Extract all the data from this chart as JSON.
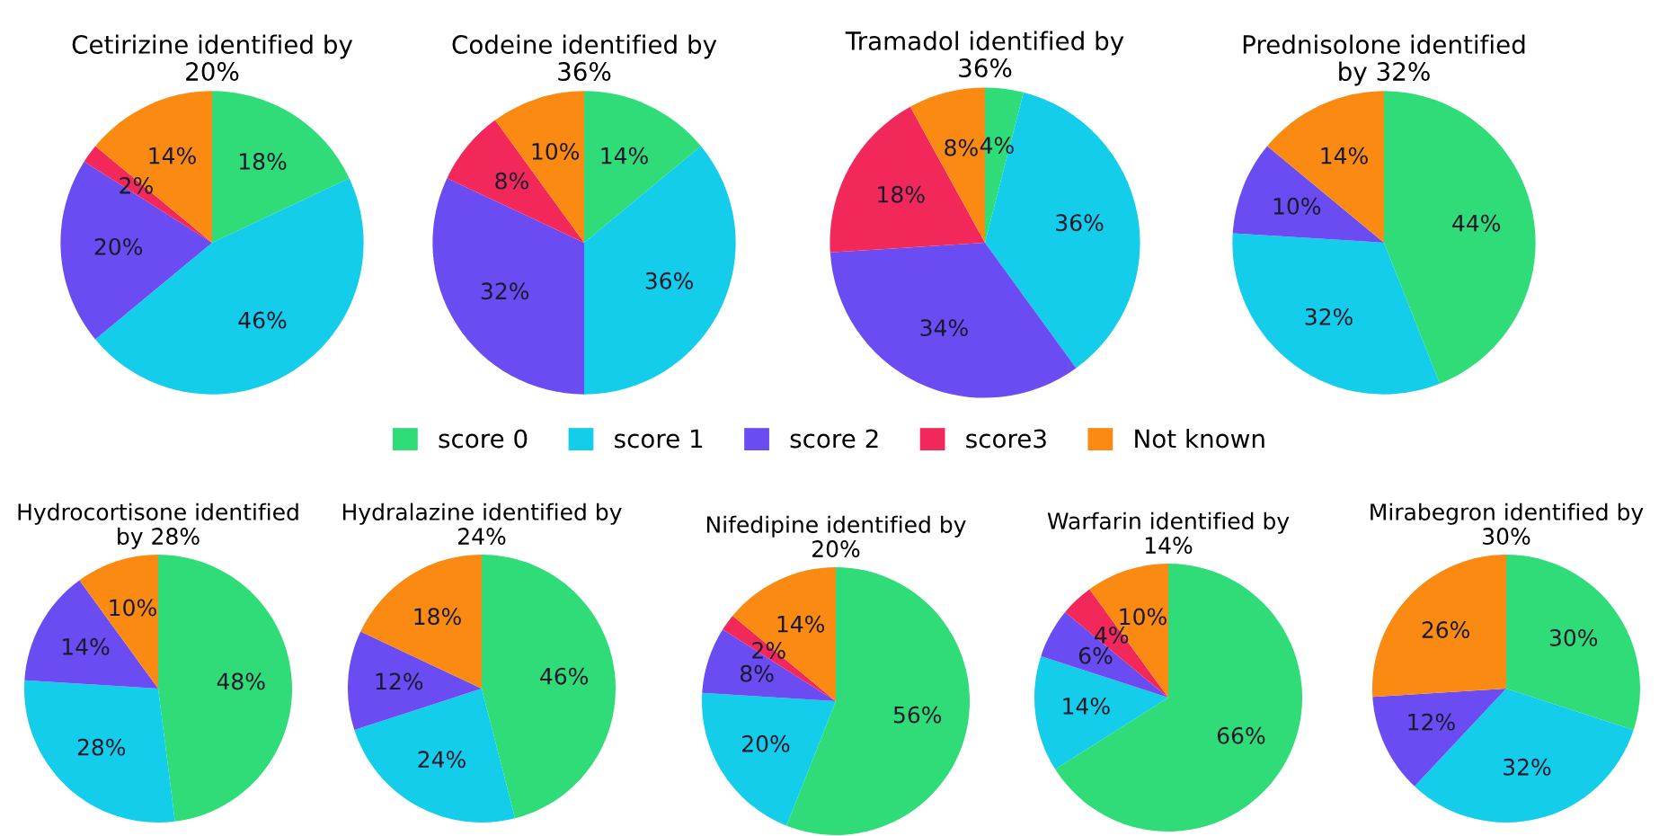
{
  "chart_data": [
    {
      "type": "pie",
      "title": "Cetirizine identified by 20%",
      "categories": [
        "score 0",
        "score 1",
        "score 2",
        "score3",
        "Not known"
      ],
      "values": [
        18,
        46,
        20,
        2,
        14
      ],
      "value_labels": [
        "18%",
        "46%",
        "20%",
        "2%",
        "14%"
      ],
      "colors": [
        "#2fdc78",
        "#14cdea",
        "#6a4cf2",
        "#f3285a",
        "#fb8a12"
      ],
      "legend": "bottom"
    },
    {
      "type": "pie",
      "title": "Codeine identified by 36%",
      "categories": [
        null,
        null,
        null,
        null,
        null
      ],
      "values": [
        14,
        36,
        32,
        8,
        10
      ],
      "value_labels": [
        "14%",
        "36%",
        "32%",
        "8%",
        "10%"
      ],
      "colors": [
        "#2fdc78",
        "#14cdea",
        "#6a4cf2",
        "#f3285a",
        "#fb8a12"
      ]
    },
    {
      "type": "pie",
      "title": "Tramadol identified by 36%",
      "categories": [
        null,
        null,
        null,
        null,
        null
      ],
      "values": [
        4,
        36,
        34,
        18,
        8
      ],
      "value_labels": [
        "4%",
        "36%",
        "34%",
        "18%",
        "8%"
      ],
      "colors": [
        "#2fdc78",
        "#14cdea",
        "#6a4cf2",
        "#f3285a",
        "#fb8a12"
      ]
    },
    {
      "type": "pie",
      "title": "Prednisolone identified by 32%",
      "categories": [
        null,
        null,
        null,
        null
      ],
      "values": [
        44,
        32,
        10,
        14
      ],
      "value_labels": [
        "44%",
        "32%",
        "10%",
        "14%"
      ],
      "colors": [
        "#2fdc78",
        "#14cdea",
        "#6a4cf2",
        "#fb8a12"
      ]
    },
    {
      "type": "pie",
      "title": "Hydrocortisone identified by 28%",
      "categories": [
        null,
        null,
        null,
        null
      ],
      "values": [
        48,
        28,
        14,
        10
      ],
      "value_labels": [
        "48%",
        "28%",
        "14%",
        "10%"
      ],
      "colors": [
        "#2fdc78",
        "#14cdea",
        "#6a4cf2",
        "#fb8a12"
      ]
    },
    {
      "type": "pie",
      "title": "Hydralazine identified by 24%",
      "categories": [
        null,
        null,
        null,
        null
      ],
      "values": [
        46,
        24,
        12,
        18
      ],
      "value_labels": [
        "46%",
        "24%",
        "12%",
        "18%"
      ],
      "colors": [
        "#2fdc78",
        "#14cdea",
        "#6a4cf2",
        "#fb8a12"
      ]
    },
    {
      "type": "pie",
      "title": "Nifedipine identified by 20%",
      "categories": [
        null,
        null,
        null,
        null,
        null
      ],
      "values": [
        56,
        20,
        8,
        2,
        14
      ],
      "value_labels": [
        "56%",
        "20%",
        "8%",
        "2%",
        "14%"
      ],
      "colors": [
        "#2fdc78",
        "#14cdea",
        "#6a4cf2",
        "#f3285a",
        "#fb8a12"
      ]
    },
    {
      "type": "pie",
      "title": "Warfarin identified by 14%",
      "categories": [
        null,
        null,
        null,
        null,
        null
      ],
      "values": [
        66,
        14,
        6,
        4,
        10
      ],
      "value_labels": [
        "66%",
        "14%",
        "6%",
        "4%",
        "10%"
      ],
      "colors": [
        "#2fdc78",
        "#14cdea",
        "#6a4cf2",
        "#f3285a",
        "#fb8a12"
      ]
    },
    {
      "type": "pie",
      "title": "Mirabegron identified by 30%",
      "categories": [
        null,
        null,
        null,
        null
      ],
      "values": [
        30,
        32,
        12,
        26
      ],
      "value_labels": [
        "30%",
        "32%",
        "12%",
        "26%"
      ],
      "colors": [
        "#2fdc78",
        "#14cdea",
        "#6a4cf2",
        "#fb8a12"
      ]
    }
  ]
}
